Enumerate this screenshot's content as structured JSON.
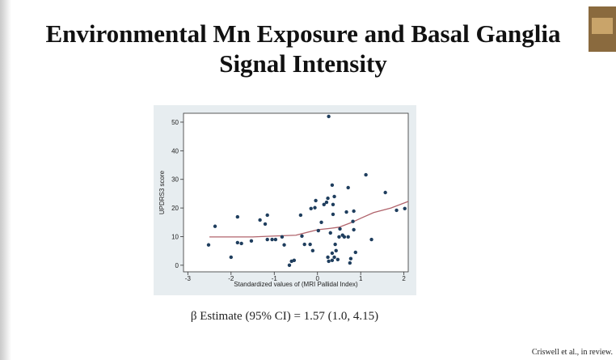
{
  "slide": {
    "title": [
      "Environmental Mn Exposure and Basal Ganglia",
      "Signal Intensity"
    ],
    "caption": "β Estimate (95% CI) = 1.57 (1.0, 4.15)",
    "citation": "Criswell et al., in review."
  },
  "chart_data": {
    "type": "scatter",
    "x_label": "Standardized values of (MRI Pallidal Index)",
    "y_label": "UPDRS3 score",
    "color": "#1f3e5e",
    "x": [
      -2.52,
      -2.37,
      -2.0,
      -1.85,
      -1.85,
      -1.76,
      -1.53,
      -1.33,
      -1.21,
      -1.16,
      -1.16,
      -1.05,
      -0.97,
      -0.82,
      -0.77,
      -0.65,
      -0.6,
      -0.54,
      -0.39,
      -0.36,
      -0.3,
      -0.15,
      -0.04,
      -0.06,
      0.02,
      0.09,
      0.15,
      0.21,
      0.26,
      0.24,
      0.34,
      0.36,
      0.36,
      0.3,
      0.39,
      0.24,
      0.26,
      0.34,
      0.34,
      0.39,
      0.43,
      0.41,
      0.47,
      0.52,
      0.5,
      0.58,
      0.62,
      0.71,
      0.71,
      0.75,
      0.77,
      0.82,
      0.84,
      0.84,
      0.88,
      0.67,
      1.12,
      1.25,
      1.57,
      1.83,
      2.02,
      -0.11,
      -0.17
    ],
    "values": [
      7.1,
      13.6,
      2.8,
      16.9,
      7.9,
      7.6,
      8.5,
      15.8,
      14.4,
      17.5,
      9.0,
      9.0,
      9.0,
      9.9,
      7.1,
      0,
      1.4,
      1.7,
      17.5,
      10.2,
      7.3,
      19.8,
      22.6,
      20.1,
      12.1,
      15.0,
      21.2,
      22.0,
      52.0,
      23.4,
      28.0,
      21.2,
      17.8,
      11.3,
      24.0,
      2.8,
      1.4,
      4.2,
      1.7,
      2.8,
      5.1,
      7.3,
      2.0,
      12.7,
      9.9,
      10.5,
      9.9,
      27.1,
      9.9,
      0.8,
      2.3,
      15.3,
      18.9,
      12.4,
      4.5,
      18.6,
      31.6,
      9.0,
      25.4,
      19.2,
      19.8,
      5.1,
      7.3
    ],
    "fit": {
      "color": "#b0636b",
      "x": [
        -2.5,
        -1.5,
        -1.0,
        -0.5,
        0,
        0.3,
        0.5,
        0.8,
        1.0,
        1.3,
        1.7,
        2.1
      ],
      "values": [
        9.9,
        9.9,
        10.2,
        10.5,
        12.4,
        12.9,
        13.3,
        15.0,
        16.4,
        18.4,
        20.0,
        22.3
      ]
    },
    "xlim": [
      -3.1,
      2.1
    ],
    "ylim": [
      -2.3,
      53.1
    ],
    "xticks": [
      -3,
      -2,
      -1,
      0,
      1,
      2
    ],
    "yticks": [
      0,
      10,
      20,
      30,
      40,
      50
    ]
  }
}
